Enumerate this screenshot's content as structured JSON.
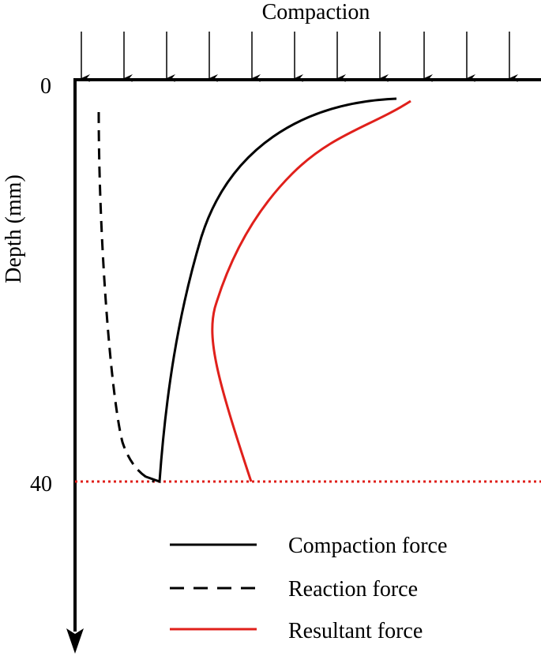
{
  "title": "Compaction",
  "axis": {
    "label": "Depth (mm)",
    "ticks": [
      "0",
      "40"
    ]
  },
  "legend": [
    "Compaction force",
    "Reaction force",
    "Resultant force"
  ]
}
